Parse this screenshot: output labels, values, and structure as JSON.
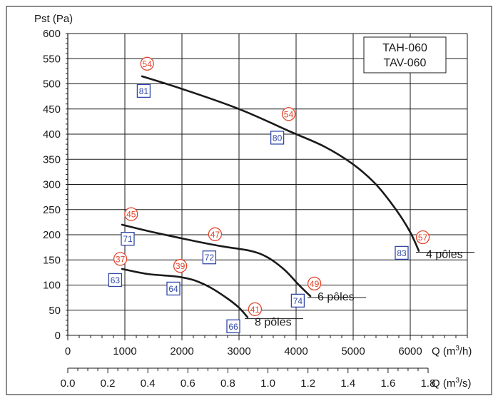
{
  "chart_data": {
    "type": "line",
    "title": "",
    "ylabel": "Pst (Pa)",
    "xlabel": "Q (m³/h)",
    "xlabel_primary": {
      "prefix": "Q (m",
      "sup": "3",
      "suffix": "/h)"
    },
    "xlabel_secondary": {
      "prefix": "Q (m",
      "sup": "3",
      "suffix": "/s)"
    },
    "ylim": [
      0,
      600
    ],
    "xlim": [
      0,
      7000
    ],
    "yticks": [
      0,
      50,
      100,
      150,
      200,
      250,
      300,
      350,
      400,
      450,
      500,
      550,
      600
    ],
    "xticks": [
      0,
      1000,
      2000,
      3000,
      4000,
      5000,
      6000
    ],
    "x2_ticks": [
      "0.0",
      "0.2",
      "0.4",
      "0.6",
      "0.8",
      "1.0",
      "1.2",
      "1.4",
      "1.6",
      "1.8"
    ],
    "x2_tick_values": [
      0.0,
      0.2,
      0.4,
      0.6,
      0.8,
      1.0,
      1.2,
      1.4,
      1.6,
      1.8
    ],
    "grid": true,
    "legend": {
      "lines": [
        "TAH-060",
        "TAV-060"
      ],
      "position": "top-right"
    },
    "series": [
      {
        "name": "4 pôles",
        "x": [
          1300,
          2000,
          3000,
          3900,
          4500,
          5000,
          5400,
          5750,
          6000,
          6150
        ],
        "y": [
          515,
          490,
          450,
          405,
          375,
          340,
          300,
          250,
          205,
          168
        ]
      },
      {
        "name": "6 pôles",
        "x": [
          950,
          1500,
          2200,
          2700,
          3200,
          3500,
          3800,
          4050,
          4250
        ],
        "y": [
          220,
          205,
          188,
          177,
          168,
          155,
          130,
          100,
          78
        ]
      },
      {
        "name": "8 pôles",
        "x": [
          950,
          1400,
          1900,
          2200,
          2500,
          2800,
          3000,
          3150
        ],
        "y": [
          132,
          122,
          117,
          110,
          95,
          73,
          55,
          36
        ]
      }
    ],
    "annotations": {
      "circles": [
        {
          "value": "54",
          "x": 1390,
          "y": 540
        },
        {
          "value": "54",
          "x": 3870,
          "y": 440
        },
        {
          "value": "57",
          "x": 6220,
          "y": 195
        },
        {
          "value": "45",
          "x": 1110,
          "y": 241
        },
        {
          "value": "47",
          "x": 2580,
          "y": 201
        },
        {
          "value": "49",
          "x": 4320,
          "y": 103
        },
        {
          "value": "37",
          "x": 920,
          "y": 152
        },
        {
          "value": "39",
          "x": 1970,
          "y": 138
        },
        {
          "value": "41",
          "x": 3280,
          "y": 52
        }
      ],
      "squares": [
        {
          "value": "81",
          "x": 1330,
          "y": 486
        },
        {
          "value": "80",
          "x": 3670,
          "y": 393
        },
        {
          "value": "83",
          "x": 5850,
          "y": 164
        },
        {
          "value": "71",
          "x": 1050,
          "y": 192
        },
        {
          "value": "72",
          "x": 2480,
          "y": 155
        },
        {
          "value": "74",
          "x": 4030,
          "y": 69
        },
        {
          "value": "63",
          "x": 830,
          "y": 110
        },
        {
          "value": "64",
          "x": 1850,
          "y": 93
        },
        {
          "value": "66",
          "x": 2900,
          "y": 18
        }
      ]
    }
  },
  "colors": {
    "curve": "#1a1a1a",
    "grid": "#1a1a1a",
    "circle_marker": "#e0452b",
    "square_marker": "#3048a8"
  }
}
